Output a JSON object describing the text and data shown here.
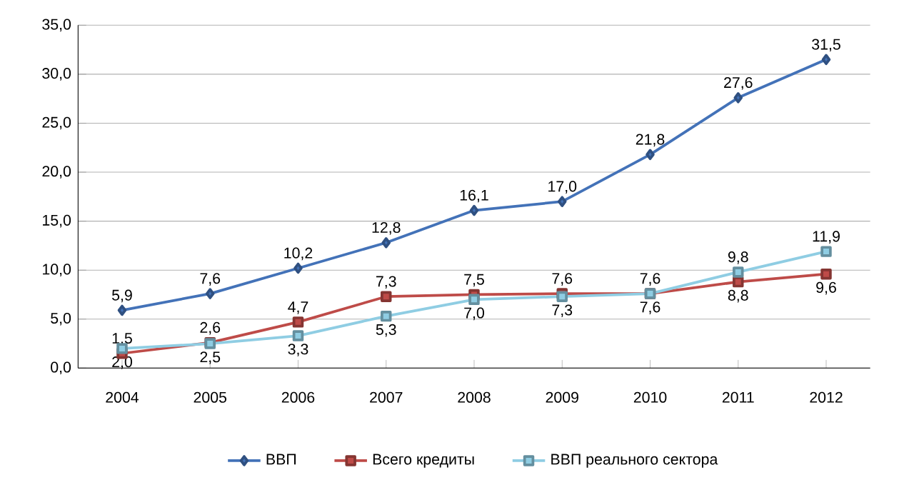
{
  "chart_data": {
    "type": "line",
    "categories": [
      "2004",
      "2005",
      "2006",
      "2007",
      "2008",
      "2009",
      "2010",
      "2011",
      "2012"
    ],
    "series": [
      {
        "name": "ВВП",
        "color": "#4372b8",
        "marker": "diamond",
        "values": [
          5.9,
          7.6,
          10.2,
          12.8,
          16.1,
          17.0,
          21.8,
          27.6,
          31.5
        ],
        "value_labels": [
          "5,9",
          "7,6",
          "10,2",
          "12,8",
          "16,1",
          "17,0",
          "21,8",
          "27,6",
          "31,5"
        ]
      },
      {
        "name": "Всего кредиты",
        "color": "#be4b48",
        "marker": "square",
        "values": [
          1.5,
          2.6,
          4.7,
          7.3,
          7.5,
          7.6,
          7.6,
          8.8,
          9.6
        ],
        "value_labels": [
          "1,5",
          "2,6",
          "4,7",
          "7,3",
          "7,5",
          "7,6",
          "7,6",
          "8,8",
          "9,6"
        ]
      },
      {
        "name": "ВВП реального сектора",
        "color": "#8fcde3",
        "marker": "square",
        "values": [
          2.0,
          2.5,
          3.3,
          5.3,
          7.0,
          7.3,
          7.6,
          9.8,
          11.9
        ],
        "value_labels": [
          "2,0",
          "2,5",
          "3,3",
          "5,3",
          "7,0",
          "7,3",
          "7,6",
          "9,8",
          "11,9"
        ]
      }
    ],
    "ylim": [
      0,
      35
    ],
    "yticks": [
      {
        "value": 0,
        "label": "0,0"
      },
      {
        "value": 5,
        "label": "5,0"
      },
      {
        "value": 10,
        "label": "10,0"
      },
      {
        "value": 15,
        "label": "15,0"
      },
      {
        "value": 20,
        "label": "20,0"
      },
      {
        "value": 25,
        "label": "25,0"
      },
      {
        "value": 30,
        "label": "30,0"
      },
      {
        "value": 35,
        "label": "35,0"
      }
    ],
    "grid": "y",
    "legend": "bottom",
    "line_style": "solid"
  }
}
